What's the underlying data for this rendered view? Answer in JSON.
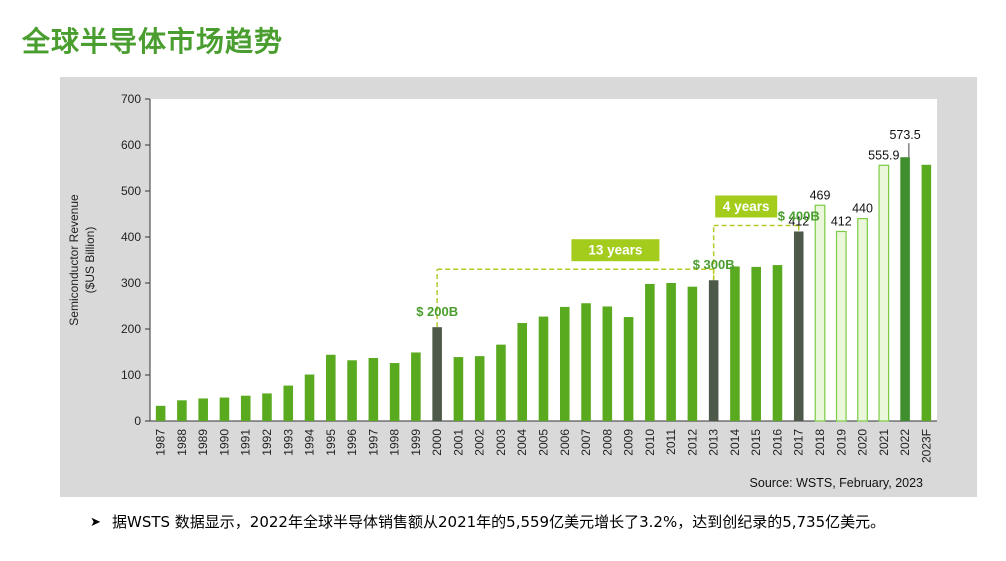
{
  "page": {
    "title": "全球半导体市场趋势",
    "footnote_bullet": "➤",
    "footnote": "据WSTS 数据显示，2022年全球半导体销售额从2021年的5,559亿美元增长了3.2%，达到创纪录的5,735亿美元。"
  },
  "chart_data": {
    "type": "bar",
    "ylabel_line1": "Semiconductor Revenue",
    "ylabel_line2": "($US Billion)",
    "ylim": [
      0,
      700
    ],
    "yticks": [
      0,
      100,
      200,
      300,
      400,
      500,
      600,
      700
    ],
    "categories": [
      "1987",
      "1988",
      "1989",
      "1990",
      "1991",
      "1992",
      "1993",
      "1994",
      "1995",
      "1996",
      "1997",
      "1998",
      "1999",
      "2000",
      "2001",
      "2002",
      "2003",
      "2004",
      "2005",
      "2006",
      "2007",
      "2008",
      "2009",
      "2010",
      "2011",
      "2012",
      "2013",
      "2014",
      "2015",
      "2016",
      "2017",
      "2018",
      "2019",
      "2020",
      "2021",
      "2022",
      "2023F"
    ],
    "values": [
      33,
      45,
      49,
      51,
      55,
      60,
      77,
      101,
      144,
      132,
      137,
      126,
      149,
      204,
      139,
      141,
      166,
      213,
      227,
      248,
      256,
      249,
      226,
      298,
      300,
      292,
      306,
      336,
      335,
      339,
      412,
      469,
      412,
      440,
      555.9,
      573.5,
      557
    ],
    "styles": [
      "green",
      "green",
      "green",
      "green",
      "green",
      "green",
      "green",
      "green",
      "green",
      "green",
      "green",
      "green",
      "green",
      "dark",
      "green",
      "green",
      "green",
      "green",
      "green",
      "green",
      "green",
      "green",
      "green",
      "green",
      "green",
      "green",
      "dark",
      "green",
      "green",
      "green",
      "dark",
      "light",
      "light",
      "light",
      "light",
      "darkgreen",
      "green"
    ],
    "data_labels": [
      {
        "category": "2017",
        "text": "412"
      },
      {
        "category": "2018",
        "text": "469"
      },
      {
        "category": "2019",
        "text": "412"
      },
      {
        "category": "2020",
        "text": "440"
      },
      {
        "category": "2021",
        "text": "555.9"
      },
      {
        "category": "2022",
        "text": "573.5"
      }
    ],
    "milestones": [
      {
        "category": "2000",
        "text": "$ 200B"
      },
      {
        "category": "2013",
        "text": "$ 300B"
      },
      {
        "category": "2017",
        "text": "$ 400B"
      }
    ],
    "spans": [
      {
        "from": "2000",
        "to": "2013",
        "value": 330,
        "text": "13 years"
      },
      {
        "from": "2013",
        "to": "2017",
        "value": 425,
        "text": "4 years"
      }
    ],
    "source": "Source: WSTS, February, 2023",
    "grid": false,
    "colors": {
      "green": "#5aaa1f",
      "dark": "#4d5a4a",
      "darkgreen": "#3f8f2f",
      "light_fill": "#eaf7da",
      "light_stroke": "#7ccc44",
      "dashed": "#b7c92a",
      "callout": "#a4cc1c",
      "milestone_text": "#4a9e2f"
    }
  }
}
